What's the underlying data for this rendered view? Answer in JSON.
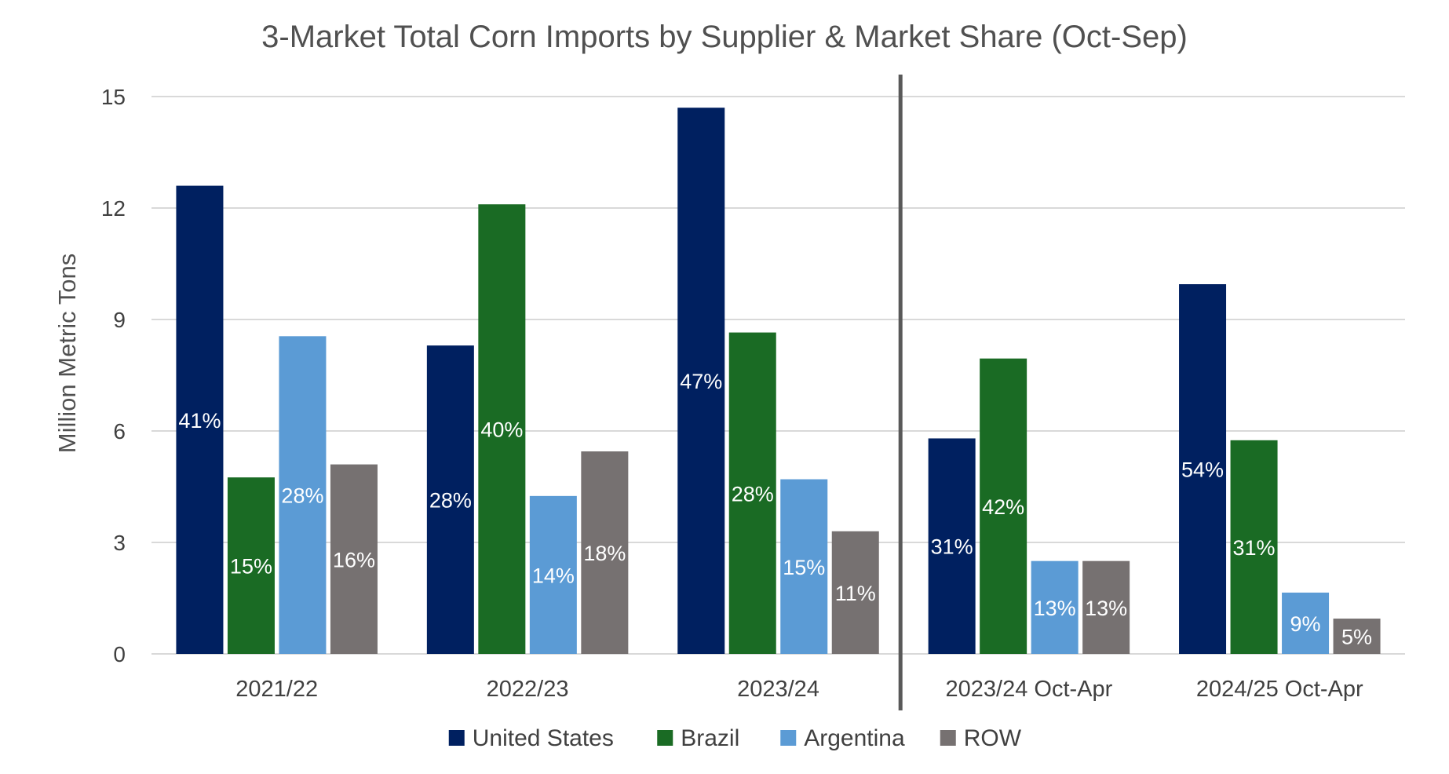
{
  "chart_data": {
    "type": "bar",
    "title": "3-Market Total Corn Imports by Supplier & Market Share (Oct-Sep)",
    "ylabel": "Million Metric Tons",
    "xlabel": "",
    "ylim": [
      0,
      15
    ],
    "yticks": [
      0,
      3,
      6,
      9,
      12,
      15
    ],
    "grid": true,
    "legend_position": "bottom",
    "categories": [
      "2021/22",
      "2022/23",
      "2023/24",
      "2023/24 Oct-Apr",
      "2024/25 Oct-Apr"
    ],
    "separator_after_category": 2,
    "series": [
      {
        "name": "United States",
        "color": "#002060",
        "values": [
          12.6,
          8.3,
          14.7,
          5.8,
          9.95
        ],
        "labels": [
          "41%",
          "28%",
          "47%",
          "31%",
          "54%"
        ]
      },
      {
        "name": "Brazil",
        "color": "#1a6b24",
        "values": [
          4.75,
          12.1,
          8.65,
          7.95,
          5.75
        ],
        "labels": [
          "15%",
          "40%",
          "28%",
          "42%",
          "31%"
        ]
      },
      {
        "name": "Argentina",
        "color": "#5b9bd5",
        "values": [
          8.55,
          4.25,
          4.7,
          2.5,
          1.65
        ],
        "labels": [
          "28%",
          "14%",
          "15%",
          "13%",
          "9%"
        ]
      },
      {
        "name": "ROW",
        "color": "#767171",
        "values": [
          5.1,
          5.45,
          3.3,
          2.5,
          0.95
        ],
        "labels": [
          "16%",
          "18%",
          "11%",
          "13%",
          "5%"
        ]
      }
    ]
  }
}
